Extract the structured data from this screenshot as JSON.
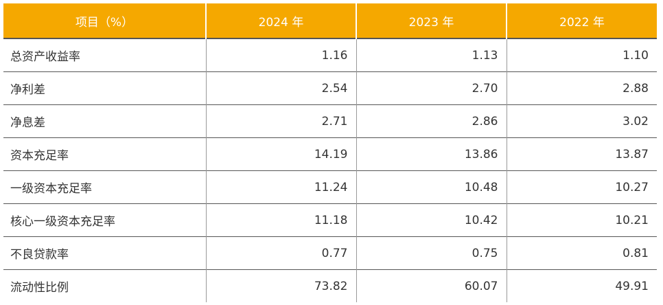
{
  "table": {
    "header": [
      "项目（%）",
      "2024 年",
      "2023 年",
      "2022 年"
    ],
    "rows": [
      [
        "总资产收益率",
        "1.16",
        "1.13",
        "1.10"
      ],
      [
        "净利差",
        "2.54",
        "2.70",
        "2.88"
      ],
      [
        "净息差",
        "2.71",
        "2.86",
        "3.02"
      ],
      [
        "资本充足率",
        "14.19",
        "13.86",
        "13.87"
      ],
      [
        "一级资本充足率",
        "11.24",
        "10.48",
        "10.27"
      ],
      [
        "核心一级资本充足率",
        "11.18",
        "10.42",
        "10.21"
      ],
      [
        "不良贷款率",
        "0.77",
        "0.75",
        "0.81"
      ],
      [
        "流动性比例",
        "73.82",
        "60.07",
        "49.91"
      ]
    ]
  }
}
